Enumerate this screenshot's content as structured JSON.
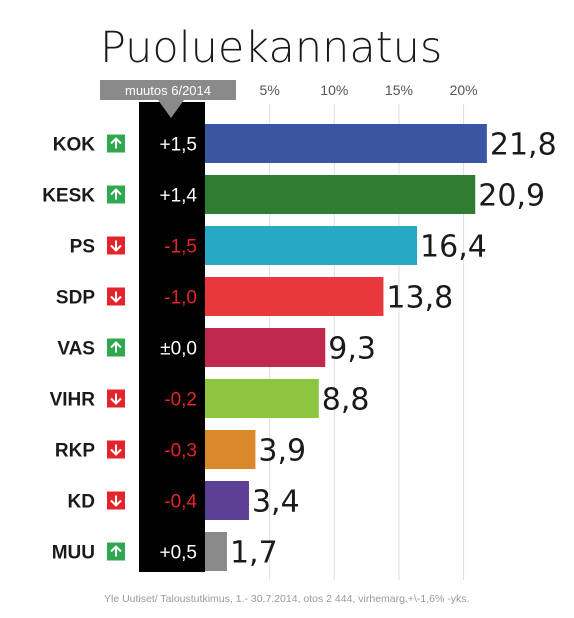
{
  "chart_data": {
    "type": "bar",
    "orientation": "horizontal",
    "title": "Puoluekannatus",
    "change_header": "muutos 6/2014",
    "x_ticks": [
      "5%",
      "10%",
      "15%",
      "20%"
    ],
    "x_tick_values": [
      5,
      10,
      15,
      20
    ],
    "xlim": [
      0,
      23
    ],
    "grid": true,
    "categories": [
      "KOK",
      "KESK",
      "PS",
      "SDP",
      "VAS",
      "VIHR",
      "RKP",
      "KD",
      "MUU"
    ],
    "values": [
      21.8,
      20.9,
      16.4,
      13.8,
      9.3,
      8.8,
      3.9,
      3.4,
      1.7
    ],
    "value_labels": [
      "21,8",
      "20,9",
      "16,4",
      "13,8",
      "9,3",
      "8,8",
      "3,9",
      "3,4",
      "1,7"
    ],
    "changes": [
      "+1,5",
      "+1,4",
      "-1,5",
      "-1,0",
      "±0,0",
      "-0,2",
      "-0,3",
      "-0,4",
      "+0,5"
    ],
    "change_direction": [
      "up",
      "up",
      "down",
      "down",
      "up",
      "down",
      "down",
      "down",
      "up"
    ],
    "colors": [
      "#3a56a3",
      "#2f7d32",
      "#27a9c4",
      "#e8383d",
      "#c0294b",
      "#8cc63f",
      "#d9892c",
      "#5b3f93",
      "#8a8a8a"
    ],
    "up_color": "#2fa84f",
    "down_color": "#e3242b",
    "source": "Yle Uutiset/ Taloustutkimus, 1.- 30.7.2014, otos 2 444, virhemarg.+\\-1,6% -yks."
  }
}
